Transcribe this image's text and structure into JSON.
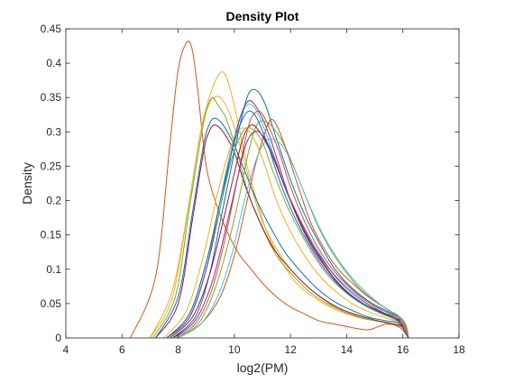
{
  "chart_data": {
    "type": "line",
    "title": "Density Plot",
    "xlabel": "log2(PM)",
    "ylabel": "Density",
    "xlim": [
      4,
      18
    ],
    "ylim": [
      0,
      0.45
    ],
    "xticks": [
      4,
      6,
      8,
      10,
      12,
      14,
      16,
      18
    ],
    "xtick_labels": [
      "4",
      "6",
      "8",
      "10",
      "12",
      "14",
      "16",
      "18"
    ],
    "yticks": [
      0,
      0.05,
      0.1,
      0.15,
      0.2,
      0.25,
      0.3,
      0.35,
      0.4,
      0.45
    ],
    "ytick_labels": [
      "0",
      "0.05",
      "0.1",
      "0.15",
      "0.2",
      "0.25",
      "0.3",
      "0.35",
      "0.4",
      "0.45"
    ],
    "grid": false,
    "legend": "none",
    "box": true,
    "colors": [
      "#0072BD",
      "#D95319",
      "#EDB120",
      "#7E2F8E",
      "#77AC30",
      "#4DBEEE",
      "#A2142F"
    ],
    "series": [
      {
        "color": "#D95319",
        "x": [
          6.3,
          7.2,
          7.7,
          8.0,
          8.3,
          8.5,
          8.7,
          9.0,
          9.4,
          9.8,
          10.2,
          10.6,
          11.0,
          11.5,
          12.0,
          12.5,
          13.0,
          13.6,
          14.2,
          14.8,
          15.4,
          15.9,
          16.2
        ],
        "y": [
          0,
          0.09,
          0.28,
          0.39,
          0.43,
          0.42,
          0.36,
          0.25,
          0.19,
          0.15,
          0.12,
          0.1,
          0.08,
          0.06,
          0.045,
          0.035,
          0.025,
          0.02,
          0.015,
          0.012,
          0.02,
          0.015,
          0
        ]
      },
      {
        "color": "#EDB120",
        "x": [
          7.0,
          7.8,
          8.4,
          8.8,
          9.1,
          9.4,
          9.6,
          9.8,
          10.1,
          10.4,
          10.8,
          11.2,
          11.7,
          12.2,
          12.8,
          13.4,
          14.0,
          14.6,
          15.1,
          15.6,
          16.0,
          16.2
        ],
        "y": [
          0,
          0.07,
          0.2,
          0.3,
          0.35,
          0.38,
          0.387,
          0.37,
          0.32,
          0.26,
          0.2,
          0.15,
          0.11,
          0.08,
          0.06,
          0.045,
          0.035,
          0.03,
          0.025,
          0.02,
          0.015,
          0
        ]
      },
      {
        "color": "#EDB120",
        "x": [
          7.0,
          7.8,
          8.4,
          8.8,
          9.1,
          9.3,
          9.5,
          9.8,
          10.2,
          10.6,
          11.0,
          11.5,
          12.0,
          12.6,
          13.2,
          13.8,
          14.4,
          15.0,
          15.6,
          16.0,
          16.2
        ],
        "y": [
          0,
          0.06,
          0.2,
          0.3,
          0.34,
          0.35,
          0.35,
          0.33,
          0.28,
          0.22,
          0.17,
          0.13,
          0.1,
          0.075,
          0.055,
          0.04,
          0.032,
          0.026,
          0.02,
          0.015,
          0
        ]
      },
      {
        "color": "#77AC30",
        "x": [
          7.1,
          7.9,
          8.4,
          8.8,
          9.0,
          9.2,
          9.4,
          9.7,
          10.1,
          10.5,
          11.0,
          11.5,
          12.0,
          12.6,
          13.2,
          13.8,
          14.4,
          15.0,
          15.6,
          16.0,
          16.2
        ],
        "y": [
          0,
          0.06,
          0.19,
          0.29,
          0.33,
          0.35,
          0.34,
          0.32,
          0.27,
          0.21,
          0.16,
          0.12,
          0.095,
          0.07,
          0.052,
          0.04,
          0.03,
          0.025,
          0.02,
          0.015,
          0
        ]
      },
      {
        "color": "#0072BD",
        "x": [
          7.2,
          8.0,
          8.5,
          8.9,
          9.1,
          9.3,
          9.6,
          10.0,
          10.4,
          10.8,
          11.3,
          11.8,
          12.4,
          13.0,
          13.6,
          14.2,
          14.8,
          15.4,
          15.9,
          16.2
        ],
        "y": [
          0,
          0.06,
          0.18,
          0.28,
          0.31,
          0.32,
          0.31,
          0.28,
          0.24,
          0.2,
          0.16,
          0.125,
          0.095,
          0.07,
          0.052,
          0.04,
          0.03,
          0.025,
          0.02,
          0
        ]
      },
      {
        "color": "#A2142F",
        "x": [
          7.2,
          8.0,
          8.5,
          8.9,
          9.1,
          9.3,
          9.6,
          10.0,
          10.4,
          10.9,
          11.4,
          12.0,
          12.6,
          13.2,
          13.8,
          14.4,
          15.0,
          15.6,
          16.0,
          16.2
        ],
        "y": [
          0,
          0.05,
          0.17,
          0.27,
          0.3,
          0.31,
          0.3,
          0.27,
          0.22,
          0.17,
          0.13,
          0.1,
          0.075,
          0.056,
          0.042,
          0.033,
          0.026,
          0.021,
          0.016,
          0
        ]
      },
      {
        "color": "#4DBEEE",
        "x": [
          7.6,
          8.4,
          9.0,
          9.4,
          9.8,
          10.2,
          10.5,
          10.8,
          11.2,
          11.6,
          12.0,
          12.5,
          13.0,
          13.5,
          14.0,
          14.6,
          15.2,
          15.7,
          16.0,
          16.2
        ],
        "y": [
          0,
          0.03,
          0.1,
          0.18,
          0.26,
          0.32,
          0.34,
          0.33,
          0.29,
          0.24,
          0.2,
          0.16,
          0.125,
          0.095,
          0.075,
          0.056,
          0.042,
          0.032,
          0.025,
          0
        ]
      },
      {
        "color": "#0072BD",
        "x": [
          7.8,
          8.6,
          9.1,
          9.5,
          9.9,
          10.2,
          10.5,
          10.8,
          11.1,
          11.5,
          12.0,
          12.5,
          13.0,
          13.5,
          14.0,
          14.5,
          15.0,
          15.5,
          15.9,
          16.2
        ],
        "y": [
          0,
          0.03,
          0.09,
          0.17,
          0.25,
          0.31,
          0.355,
          0.36,
          0.34,
          0.29,
          0.23,
          0.18,
          0.14,
          0.105,
          0.08,
          0.062,
          0.048,
          0.038,
          0.028,
          0
        ]
      },
      {
        "color": "#7E2F8E",
        "x": [
          7.6,
          8.4,
          9.0,
          9.5,
          9.9,
          10.2,
          10.5,
          10.8,
          11.2,
          11.6,
          12.0,
          12.5,
          13.0,
          13.5,
          14.0,
          14.6,
          15.2,
          15.7,
          16.0,
          16.2
        ],
        "y": [
          0,
          0.03,
          0.1,
          0.19,
          0.27,
          0.32,
          0.345,
          0.335,
          0.3,
          0.25,
          0.2,
          0.155,
          0.12,
          0.09,
          0.068,
          0.05,
          0.038,
          0.03,
          0.022,
          0
        ]
      },
      {
        "color": "#D95319",
        "x": [
          7.8,
          8.6,
          9.2,
          9.7,
          10.1,
          10.4,
          10.6,
          10.9,
          11.2,
          11.6,
          12.0,
          12.5,
          13.0,
          13.5,
          14.0,
          14.5,
          15.0,
          15.5,
          15.9,
          16.2
        ],
        "y": [
          0,
          0.02,
          0.07,
          0.15,
          0.23,
          0.29,
          0.32,
          0.33,
          0.31,
          0.27,
          0.22,
          0.17,
          0.13,
          0.1,
          0.078,
          0.06,
          0.046,
          0.036,
          0.027,
          0
        ]
      },
      {
        "color": "#77AC30",
        "x": [
          7.9,
          8.7,
          9.3,
          9.8,
          10.2,
          10.5,
          10.8,
          11.1,
          11.5,
          11.9,
          12.4,
          12.9,
          13.4,
          13.9,
          14.4,
          14.9,
          15.4,
          15.8,
          16.1,
          16.2
        ],
        "y": [
          0,
          0.02,
          0.07,
          0.14,
          0.21,
          0.27,
          0.31,
          0.315,
          0.3,
          0.27,
          0.22,
          0.17,
          0.13,
          0.1,
          0.075,
          0.057,
          0.043,
          0.032,
          0.02,
          0
        ]
      },
      {
        "color": "#D95319",
        "x": [
          8.0,
          8.8,
          9.5,
          10.0,
          10.4,
          10.8,
          11.1,
          11.3,
          11.5,
          11.8,
          12.2,
          12.7,
          13.2,
          13.7,
          14.2,
          14.7,
          15.2,
          15.6,
          16.0,
          16.2
        ],
        "y": [
          0,
          0.02,
          0.06,
          0.12,
          0.19,
          0.26,
          0.3,
          0.318,
          0.31,
          0.28,
          0.23,
          0.17,
          0.13,
          0.1,
          0.08,
          0.062,
          0.048,
          0.038,
          0.026,
          0
        ]
      },
      {
        "color": "#4DBEEE",
        "x": [
          8.0,
          8.8,
          9.4,
          9.9,
          10.3,
          10.7,
          11.0,
          11.3,
          11.7,
          12.1,
          12.6,
          13.1,
          13.6,
          14.1,
          14.6,
          15.1,
          15.5,
          15.9,
          16.2
        ],
        "y": [
          0,
          0.02,
          0.06,
          0.12,
          0.19,
          0.25,
          0.28,
          0.29,
          0.28,
          0.25,
          0.2,
          0.155,
          0.12,
          0.092,
          0.07,
          0.052,
          0.04,
          0.03,
          0
        ]
      },
      {
        "color": "#A2142F",
        "x": [
          7.7,
          8.5,
          9.1,
          9.6,
          10.0,
          10.3,
          10.6,
          10.9,
          11.3,
          11.8,
          12.3,
          12.8,
          13.3,
          13.8,
          14.3,
          14.9,
          15.5,
          15.9,
          16.2
        ],
        "y": [
          0,
          0.03,
          0.09,
          0.17,
          0.24,
          0.29,
          0.31,
          0.3,
          0.27,
          0.22,
          0.17,
          0.13,
          0.1,
          0.075,
          0.057,
          0.042,
          0.032,
          0.024,
          0
        ]
      },
      {
        "color": "#EDB120",
        "x": [
          7.5,
          8.3,
          8.9,
          9.4,
          9.8,
          10.1,
          10.4,
          10.7,
          11.1,
          11.5,
          12.0,
          12.5,
          13.0,
          13.6,
          14.2,
          14.8,
          15.4,
          15.9,
          16.2
        ],
        "y": [
          0,
          0.04,
          0.12,
          0.21,
          0.27,
          0.3,
          0.305,
          0.29,
          0.25,
          0.2,
          0.155,
          0.12,
          0.092,
          0.068,
          0.05,
          0.038,
          0.029,
          0.021,
          0
        ]
      },
      {
        "color": "#77AC30",
        "x": [
          7.6,
          8.4,
          9.0,
          9.5,
          9.9,
          10.3,
          10.6,
          11.0,
          11.4,
          11.9,
          12.4,
          12.9,
          13.4,
          14.0,
          14.6,
          15.2,
          15.7,
          16.1,
          16.2
        ],
        "y": [
          0,
          0.035,
          0.11,
          0.19,
          0.26,
          0.3,
          0.305,
          0.285,
          0.24,
          0.19,
          0.15,
          0.115,
          0.088,
          0.065,
          0.048,
          0.036,
          0.027,
          0.018,
          0
        ]
      },
      {
        "color": "#0072BD",
        "x": [
          7.6,
          8.4,
          9.0,
          9.5,
          9.9,
          10.2,
          10.5,
          10.8,
          11.2,
          11.6,
          12.1,
          12.6,
          13.1,
          13.6,
          14.1,
          14.7,
          15.3,
          15.8,
          16.2
        ],
        "y": [
          0,
          0.035,
          0.11,
          0.2,
          0.27,
          0.31,
          0.33,
          0.32,
          0.28,
          0.23,
          0.18,
          0.14,
          0.107,
          0.082,
          0.063,
          0.047,
          0.035,
          0.026,
          0
        ]
      },
      {
        "color": "#7E2F8E",
        "x": [
          7.8,
          8.6,
          9.2,
          9.7,
          10.1,
          10.4,
          10.7,
          11.0,
          11.4,
          11.8,
          12.3,
          12.8,
          13.3,
          13.8,
          14.3,
          14.8,
          15.3,
          15.8,
          16.2
        ],
        "y": [
          0,
          0.025,
          0.08,
          0.16,
          0.23,
          0.28,
          0.3,
          0.295,
          0.265,
          0.22,
          0.175,
          0.135,
          0.105,
          0.08,
          0.062,
          0.048,
          0.037,
          0.027,
          0
        ]
      }
    ]
  }
}
